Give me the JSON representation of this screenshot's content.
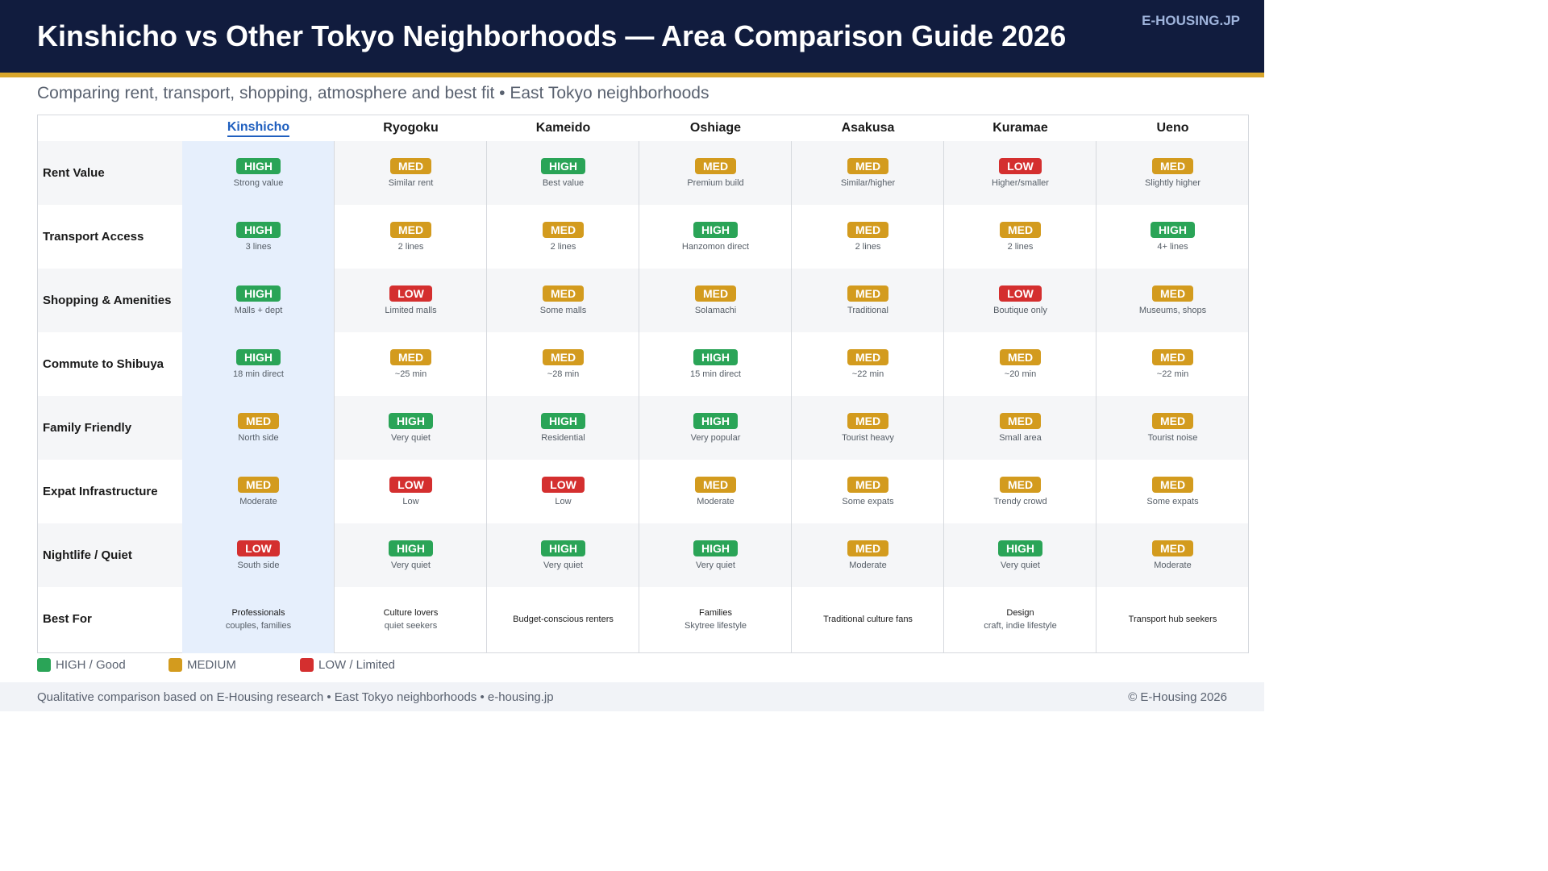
{
  "header": {
    "title": "Kinshicho vs Other Tokyo Neighborhoods  —  Area Comparison Guide 2026",
    "brand": "E-HOUSING.JP"
  },
  "subtitle": "Comparing rent, transport, shopping, atmosphere and best fit  •  East Tokyo neighborhoods",
  "colors": {
    "high": "#2aa457",
    "med": "#d39b1e",
    "low": "#d42f2f",
    "header_bg": "#111c3e",
    "accent_stripe": "#d9a62b",
    "highlight_col": "#e6effc"
  },
  "columns": [
    "Kinshicho",
    "Ryogoku",
    "Kameido",
    "Oshiage",
    "Asakusa",
    "Kuramae",
    "Ueno"
  ],
  "rows": [
    {
      "label": "Rent Value",
      "cells": [
        {
          "level": "HIGH",
          "note": "Strong value"
        },
        {
          "level": "MED",
          "note": "Similar rent"
        },
        {
          "level": "HIGH",
          "note": "Best value"
        },
        {
          "level": "MED",
          "note": "Premium build"
        },
        {
          "level": "MED",
          "note": "Similar/higher"
        },
        {
          "level": "LOW",
          "note": "Higher/smaller"
        },
        {
          "level": "MED",
          "note": "Slightly higher"
        }
      ]
    },
    {
      "label": "Transport Access",
      "cells": [
        {
          "level": "HIGH",
          "note": "3 lines"
        },
        {
          "level": "MED",
          "note": "2 lines"
        },
        {
          "level": "MED",
          "note": "2 lines"
        },
        {
          "level": "HIGH",
          "note": "Hanzomon direct"
        },
        {
          "level": "MED",
          "note": "2 lines"
        },
        {
          "level": "MED",
          "note": "2 lines"
        },
        {
          "level": "HIGH",
          "note": "4+ lines"
        }
      ]
    },
    {
      "label": "Shopping & Amenities",
      "cells": [
        {
          "level": "HIGH",
          "note": "Malls + dept"
        },
        {
          "level": "LOW",
          "note": "Limited malls"
        },
        {
          "level": "MED",
          "note": "Some malls"
        },
        {
          "level": "MED",
          "note": "Solamachi"
        },
        {
          "level": "MED",
          "note": "Traditional"
        },
        {
          "level": "LOW",
          "note": "Boutique only"
        },
        {
          "level": "MED",
          "note": "Museums, shops"
        }
      ]
    },
    {
      "label": "Commute to Shibuya",
      "cells": [
        {
          "level": "HIGH",
          "note": "18 min direct"
        },
        {
          "level": "MED",
          "note": "~25 min"
        },
        {
          "level": "MED",
          "note": "~28 min"
        },
        {
          "level": "HIGH",
          "note": "15 min direct"
        },
        {
          "level": "MED",
          "note": "~22 min"
        },
        {
          "level": "MED",
          "note": "~20 min"
        },
        {
          "level": "MED",
          "note": "~22 min"
        }
      ]
    },
    {
      "label": "Family Friendly",
      "cells": [
        {
          "level": "MED",
          "note": "North side"
        },
        {
          "level": "HIGH",
          "note": "Very quiet"
        },
        {
          "level": "HIGH",
          "note": "Residential"
        },
        {
          "level": "HIGH",
          "note": "Very popular"
        },
        {
          "level": "MED",
          "note": "Tourist heavy"
        },
        {
          "level": "MED",
          "note": "Small area"
        },
        {
          "level": "MED",
          "note": "Tourist noise"
        }
      ]
    },
    {
      "label": "Expat Infrastructure",
      "cells": [
        {
          "level": "MED",
          "note": "Moderate"
        },
        {
          "level": "LOW",
          "note": "Low"
        },
        {
          "level": "LOW",
          "note": "Low"
        },
        {
          "level": "MED",
          "note": "Moderate"
        },
        {
          "level": "MED",
          "note": "Some expats"
        },
        {
          "level": "MED",
          "note": "Trendy crowd"
        },
        {
          "level": "MED",
          "note": "Some expats"
        }
      ]
    },
    {
      "label": "Nightlife / Quiet",
      "cells": [
        {
          "level": "LOW",
          "note": "South side"
        },
        {
          "level": "HIGH",
          "note": "Very quiet"
        },
        {
          "level": "HIGH",
          "note": "Very quiet"
        },
        {
          "level": "HIGH",
          "note": "Very quiet"
        },
        {
          "level": "MED",
          "note": "Moderate"
        },
        {
          "level": "HIGH",
          "note": "Very quiet"
        },
        {
          "level": "MED",
          "note": "Moderate"
        }
      ]
    }
  ],
  "best_for": {
    "label": "Best For",
    "cells": [
      {
        "main": "Professionals",
        "sub": "couples, families"
      },
      {
        "main": "Culture lovers",
        "sub": "quiet seekers"
      },
      {
        "main": "Budget-conscious renters",
        "sub": ""
      },
      {
        "main": "Families",
        "sub": "Skytree lifestyle"
      },
      {
        "main": "Traditional culture fans",
        "sub": ""
      },
      {
        "main": "Design",
        "sub": "craft, indie lifestyle"
      },
      {
        "main": "Transport hub seekers",
        "sub": ""
      }
    ]
  },
  "legend": [
    {
      "level": "high",
      "label": "HIGH / Good"
    },
    {
      "level": "med",
      "label": "MEDIUM"
    },
    {
      "level": "low",
      "label": "LOW / Limited"
    }
  ],
  "footer": {
    "left": "Qualitative comparison based on E-Housing research   •   East Tokyo neighborhoods   •   e-housing.jp",
    "right": "© E-Housing 2026"
  }
}
